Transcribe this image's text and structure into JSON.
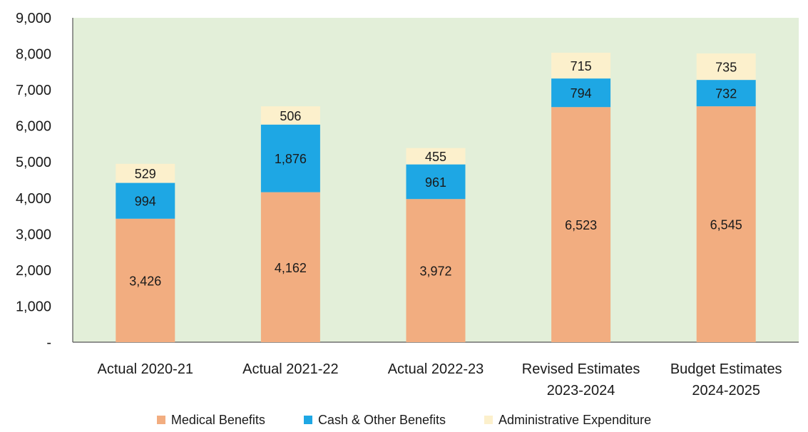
{
  "chart_data": {
    "type": "bar",
    "stacked": true,
    "categories": [
      [
        "Actual 2020-21"
      ],
      [
        "Actual 2021-22"
      ],
      [
        "Actual 2022-23"
      ],
      [
        "Revised Estimates",
        "2023-2024"
      ],
      [
        "Budget Estimates",
        "2024-2025"
      ]
    ],
    "series": [
      {
        "name": "Medical Benefits",
        "color": "#f2ad80",
        "values": [
          3426,
          4162,
          3972,
          6523,
          6545
        ],
        "labels": [
          "3,426",
          "4,162",
          "3,972",
          "6,523",
          "6,545"
        ]
      },
      {
        "name": "Cash & Other Benefits",
        "color": "#1ea7e4",
        "values": [
          994,
          1876,
          961,
          794,
          732
        ],
        "labels": [
          "994",
          "1,876",
          "961",
          "794",
          "732"
        ]
      },
      {
        "name": "Administrative Expenditure",
        "color": "#fcf0cc",
        "values": [
          529,
          506,
          455,
          715,
          735
        ],
        "labels": [
          "529",
          "506",
          "455",
          "715",
          "735"
        ]
      }
    ],
    "ylim": [
      0,
      9000
    ],
    "yticks": [
      0,
      1000,
      2000,
      3000,
      4000,
      5000,
      6000,
      7000,
      8000,
      9000
    ],
    "ytick_labels": [
      "-",
      "1,000",
      "2,000",
      "3,000",
      "4,000",
      "5,000",
      "6,000",
      "7,000",
      "8,000",
      "9,000"
    ],
    "plot_background": "#e3efd9",
    "grid": false,
    "legend_position": "bottom"
  }
}
